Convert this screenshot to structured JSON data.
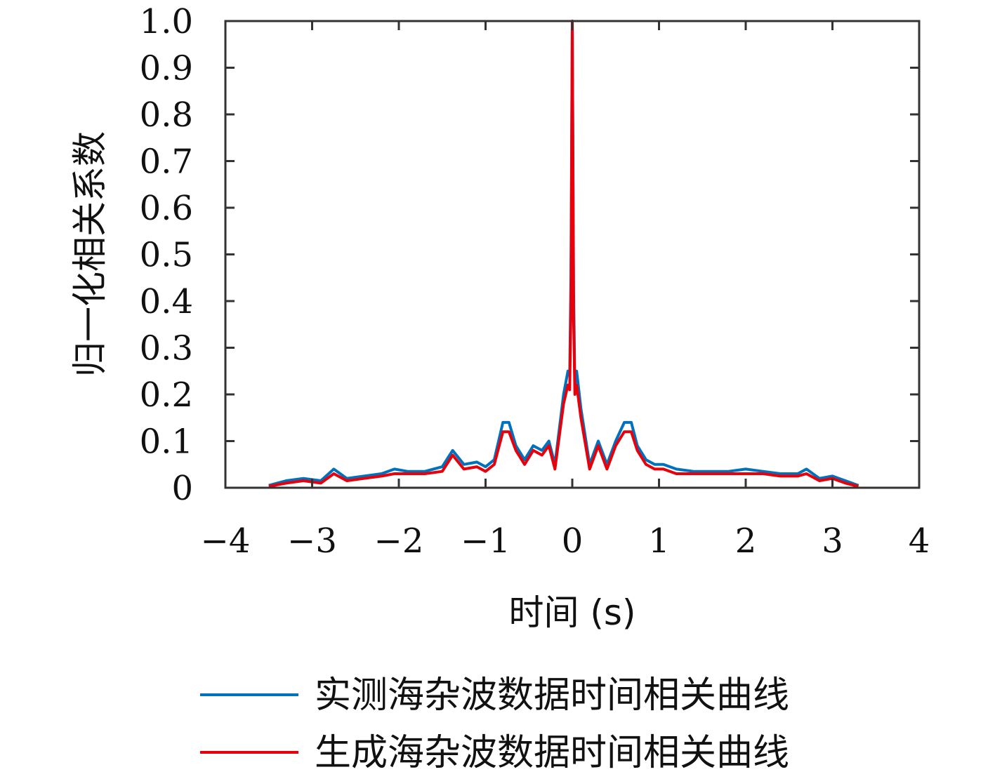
{
  "chart_data": {
    "type": "line",
    "title": "",
    "xlabel": "时间 (s)",
    "ylabel": "归一化相关系数",
    "xlim": [
      -4,
      4
    ],
    "ylim": [
      0,
      1
    ],
    "x_ticks": [
      "−4",
      "−3",
      "−2",
      "−1",
      "0",
      "1",
      "2",
      "3",
      "4"
    ],
    "y_ticks": [
      "0",
      "0.1",
      "0.2",
      "0.3",
      "0.4",
      "0.5",
      "0.6",
      "0.7",
      "0.8",
      "0.9",
      "1.0"
    ],
    "grid": false,
    "legend_position": "bottom",
    "series": [
      {
        "name": "实测海杂波数据时间相关曲线",
        "color": "#0072BD",
        "x": [
          -3.5,
          -3.3,
          -3.1,
          -2.9,
          -2.75,
          -2.6,
          -2.4,
          -2.2,
          -2.05,
          -1.9,
          -1.7,
          -1.5,
          -1.38,
          -1.25,
          -1.1,
          -1.0,
          -0.9,
          -0.8,
          -0.73,
          -0.65,
          -0.55,
          -0.45,
          -0.35,
          -0.27,
          -0.2,
          -0.1,
          -0.05,
          -0.03,
          -0.015,
          0,
          0.015,
          0.03,
          0.05,
          0.1,
          0.2,
          0.3,
          0.4,
          0.5,
          0.6,
          0.68,
          0.75,
          0.85,
          0.95,
          1.05,
          1.2,
          1.4,
          1.6,
          1.8,
          2.0,
          2.2,
          2.4,
          2.6,
          2.7,
          2.85,
          3.0,
          3.15,
          3.3
        ],
        "y": [
          0.005,
          0.015,
          0.02,
          0.015,
          0.04,
          0.02,
          0.025,
          0.03,
          0.04,
          0.035,
          0.035,
          0.045,
          0.08,
          0.05,
          0.055,
          0.045,
          0.06,
          0.14,
          0.14,
          0.09,
          0.06,
          0.09,
          0.08,
          0.1,
          0.05,
          0.2,
          0.25,
          0.24,
          0.45,
          1.0,
          0.42,
          0.22,
          0.25,
          0.17,
          0.05,
          0.1,
          0.05,
          0.1,
          0.14,
          0.14,
          0.09,
          0.06,
          0.05,
          0.05,
          0.04,
          0.035,
          0.035,
          0.035,
          0.04,
          0.035,
          0.03,
          0.03,
          0.04,
          0.02,
          0.025,
          0.015,
          0.005
        ]
      },
      {
        "name": "生成海杂波数据时间相关曲线",
        "color": "#E8000B",
        "x": [
          -3.5,
          -3.3,
          -3.1,
          -2.9,
          -2.75,
          -2.6,
          -2.4,
          -2.2,
          -2.05,
          -1.9,
          -1.7,
          -1.5,
          -1.38,
          -1.25,
          -1.1,
          -1.0,
          -0.9,
          -0.8,
          -0.73,
          -0.65,
          -0.55,
          -0.45,
          -0.35,
          -0.27,
          -0.2,
          -0.1,
          -0.05,
          -0.03,
          -0.015,
          0,
          0.015,
          0.03,
          0.05,
          0.1,
          0.2,
          0.3,
          0.4,
          0.5,
          0.6,
          0.68,
          0.75,
          0.85,
          0.95,
          1.05,
          1.2,
          1.4,
          1.6,
          1.8,
          2.0,
          2.2,
          2.4,
          2.6,
          2.7,
          2.85,
          3.0,
          3.15,
          3.3
        ],
        "y": [
          0.003,
          0.01,
          0.015,
          0.01,
          0.03,
          0.015,
          0.02,
          0.025,
          0.03,
          0.03,
          0.03,
          0.035,
          0.07,
          0.04,
          0.045,
          0.035,
          0.05,
          0.12,
          0.12,
          0.08,
          0.05,
          0.08,
          0.07,
          0.09,
          0.04,
          0.18,
          0.22,
          0.21,
          0.38,
          1.0,
          0.36,
          0.2,
          0.22,
          0.15,
          0.04,
          0.09,
          0.04,
          0.09,
          0.12,
          0.12,
          0.08,
          0.05,
          0.04,
          0.04,
          0.03,
          0.03,
          0.03,
          0.03,
          0.03,
          0.03,
          0.025,
          0.025,
          0.03,
          0.015,
          0.02,
          0.01,
          0.003
        ]
      }
    ]
  }
}
